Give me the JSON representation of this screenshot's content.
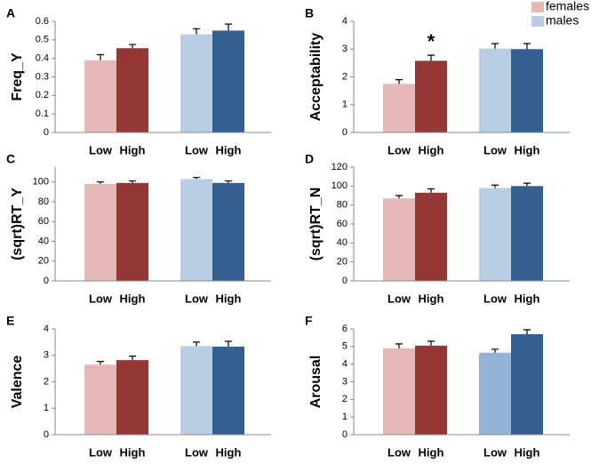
{
  "chart_data": [
    {
      "type": "bar",
      "panel": "A",
      "ylabel": "Freq_Y",
      "categories": [
        "Low",
        "High",
        "Low",
        "High"
      ],
      "values": [
        0.39,
        0.455,
        0.53,
        0.55
      ],
      "errors": [
        0.03,
        0.02,
        0.03,
        0.035
      ],
      "colors": [
        "#e6b9b8",
        "#953735",
        "#b9cde5",
        "#376092"
      ],
      "ylim": [
        0,
        0.6
      ],
      "yticks": [
        0,
        0.1,
        0.2,
        0.3,
        0.4,
        0.5,
        0.6
      ]
    },
    {
      "type": "bar",
      "panel": "B",
      "ylabel": "Acceptability",
      "categories": [
        "Low",
        "High",
        "Low",
        "High"
      ],
      "values": [
        1.75,
        2.58,
        3.02,
        3.0
      ],
      "errors": [
        0.15,
        0.2,
        0.18,
        0.2
      ],
      "colors": [
        "#e6b9b8",
        "#953735",
        "#b9cde5",
        "#376092"
      ],
      "ylim": [
        0,
        4
      ],
      "yticks": [
        0,
        1,
        2,
        3,
        4
      ],
      "annotations": [
        {
          "text": "*",
          "bar": 1
        }
      ],
      "legend": [
        {
          "name": "females",
          "color": "#e6b9b8"
        },
        {
          "name": "males",
          "color": "#b9cde5"
        }
      ]
    },
    {
      "type": "bar",
      "panel": "C",
      "ylabel": "(sqrt)RT_Y",
      "categories": [
        "Low",
        "High",
        "Low",
        "High"
      ],
      "values": [
        98,
        99,
        103,
        99
      ],
      "errors": [
        2,
        2,
        1.5,
        2
      ],
      "colors": [
        "#e6b9b8",
        "#953735",
        "#b9cde5",
        "#376092"
      ],
      "ylim": [
        0,
        115
      ],
      "yticks": [
        0,
        20,
        40,
        60,
        80,
        100
      ]
    },
    {
      "type": "bar",
      "panel": "D",
      "ylabel": "(sqrt)RT_N",
      "categories": [
        "Low",
        "High",
        "Low",
        "High"
      ],
      "values": [
        87,
        93,
        98,
        100
      ],
      "errors": [
        3,
        4,
        3,
        3
      ],
      "colors": [
        "#e6b9b8",
        "#953735",
        "#b9cde5",
        "#376092"
      ],
      "ylim": [
        0,
        120
      ],
      "yticks": [
        0,
        20,
        40,
        60,
        80,
        100,
        120
      ]
    },
    {
      "type": "bar",
      "panel": "E",
      "ylabel": "Valence",
      "categories": [
        "Low",
        "High",
        "Low",
        "High"
      ],
      "values": [
        2.65,
        2.82,
        3.35,
        3.33
      ],
      "errors": [
        0.12,
        0.15,
        0.15,
        0.2
      ],
      "colors": [
        "#e6b9b8",
        "#953735",
        "#b9cde5",
        "#376092"
      ],
      "ylim": [
        0,
        4
      ],
      "yticks": [
        0,
        1,
        2,
        3,
        4
      ]
    },
    {
      "type": "bar",
      "panel": "F",
      "ylabel": "Arousal",
      "categories": [
        "Low",
        "High",
        "Low",
        "High"
      ],
      "values": [
        4.9,
        5.05,
        4.65,
        5.7
      ],
      "errors": [
        0.25,
        0.25,
        0.2,
        0.25
      ],
      "colors": [
        "#e6b9b8",
        "#953735",
        "#95b3d7",
        "#376092"
      ],
      "ylim": [
        0,
        6
      ],
      "yticks": [
        0,
        1,
        2,
        3,
        4,
        5,
        6
      ]
    }
  ]
}
